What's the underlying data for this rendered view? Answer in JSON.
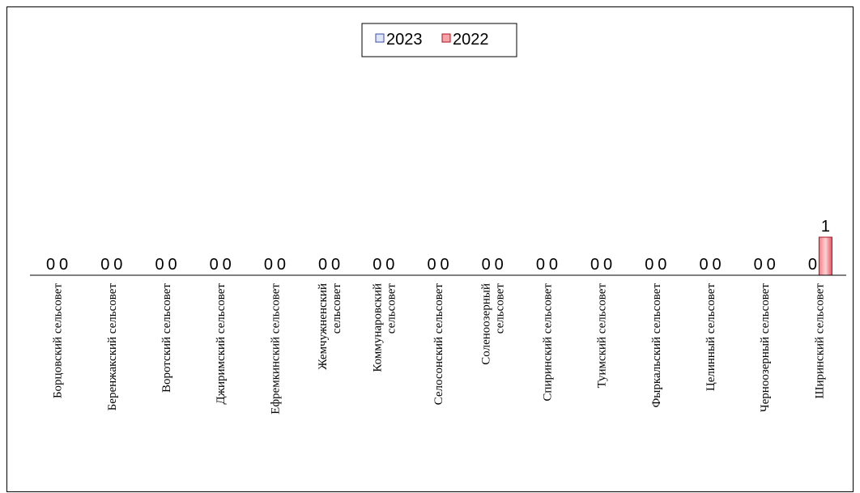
{
  "chart_data": {
    "type": "bar",
    "categories": [
      "Борцовский сельсовет",
      "Беренжакский сельсовет",
      "Воротский сельсовет",
      "Джиримский сельсовет",
      "Ефремкинский сельсовет",
      "Жемчужненский сельсовет",
      "Коммунаровский сельсовет",
      "Селосонский сельсовет",
      "Соленоозерный сельсовет",
      "Спиринский сельсовет",
      "Туимский сельсовет",
      "Фыркальский сельсовет",
      "Целинный сельсовет",
      "Черноозерный сельсовет",
      "Ширинский сельсовет"
    ],
    "series": [
      {
        "name": "2023",
        "values": [
          0,
          0,
          0,
          0,
          0,
          0,
          0,
          0,
          0,
          0,
          0,
          0,
          0,
          0,
          0
        ],
        "color": "#dfe4f7",
        "stroke": "#3a4ba8"
      },
      {
        "name": "2022",
        "values": [
          0,
          0,
          0,
          0,
          0,
          0,
          0,
          0,
          0,
          0,
          0,
          0,
          0,
          0,
          1
        ],
        "color": "#f4a3a6",
        "stroke": "#b01020"
      }
    ],
    "ylim": [
      0,
      1
    ],
    "legend_position": "top-center",
    "grid": false
  }
}
